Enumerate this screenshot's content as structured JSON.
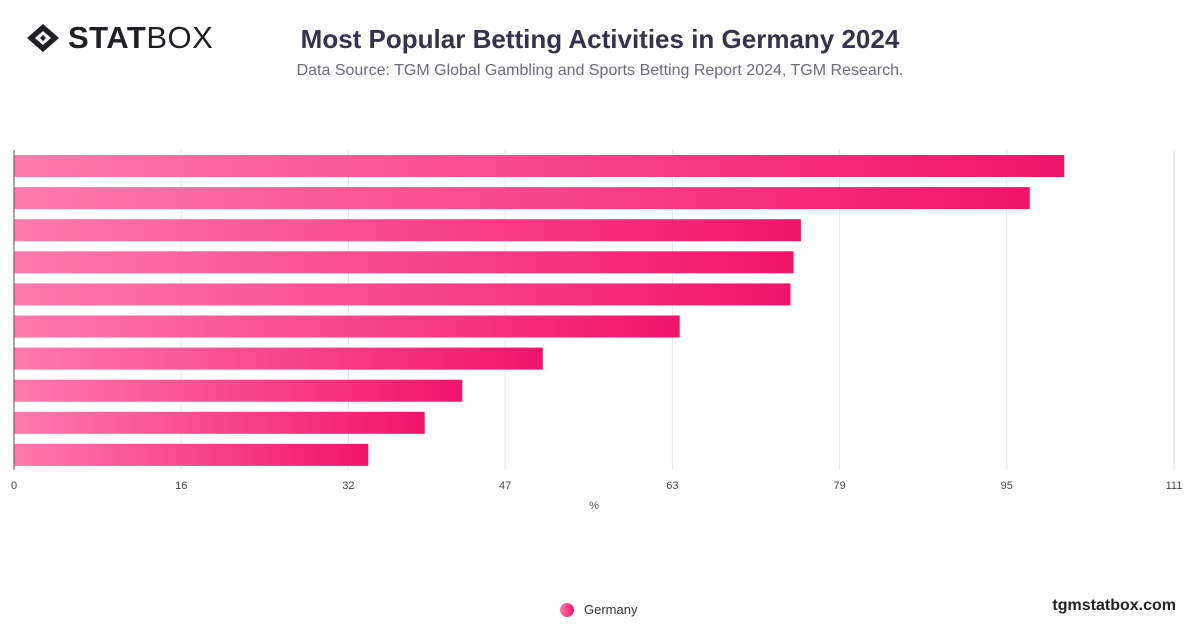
{
  "brand": {
    "logo_bold": "STAT",
    "logo_light": "BOX",
    "watermark": "tgmstatbox.com"
  },
  "colors": {
    "bar_start": "#ff7aab",
    "bar_end": "#f0146a",
    "grid": "#e6e6e6",
    "axis": "#555555"
  },
  "chart_data": {
    "type": "bar",
    "orientation": "horizontal",
    "title": "Most Popular Betting Activities in Germany 2024",
    "subtitle": "Data Source: TGM Global Gambling and Sports Betting Report 2024, TGM Research.",
    "xlabel": "%",
    "ylabel": "",
    "xlim": [
      0,
      111
    ],
    "ticks": [
      "0",
      "16",
      "32",
      "47",
      "63",
      "79",
      "95",
      "111"
    ],
    "tick_values": [
      0,
      16,
      32,
      47,
      63,
      79,
      95,
      111
    ],
    "grid": true,
    "legend": "bottom-center",
    "series": [
      {
        "name": "Germany",
        "values": [
          100.5,
          97.2,
          75.3,
          74.6,
          74.3,
          63.7,
          50.6,
          42.9,
          39.3,
          33.9
        ]
      }
    ]
  }
}
